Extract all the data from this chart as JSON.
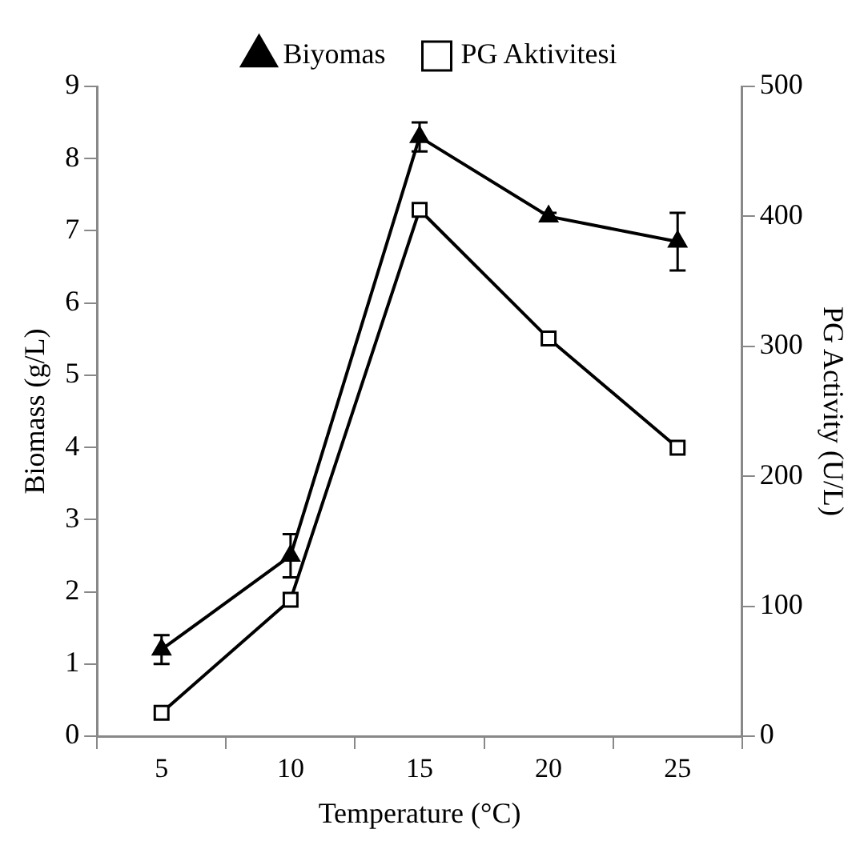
{
  "chart_data": {
    "type": "line",
    "xlabel": "Temperature (°C)",
    "ylabel": "Biomass (g/L)",
    "y2label": "PG Activity (U/L)",
    "categories": [
      "5",
      "10",
      "15",
      "20",
      "25"
    ],
    "series": [
      {
        "name": "Biyomas",
        "color": "#000000",
        "marker": "triangle",
        "values": [
          1.2,
          2.5,
          8.3,
          7.2,
          6.85
        ],
        "errors": [
          0.2,
          0.3,
          0.2,
          0.05,
          0.4
        ]
      },
      {
        "name": "PG Aktivitesi",
        "color": "#000000",
        "marker": "square",
        "axis": "y2",
        "values": [
          18,
          105,
          405,
          306,
          222
        ]
      }
    ],
    "ylim": [
      0,
      9
    ],
    "yticks": [
      0,
      1,
      2,
      3,
      4,
      5,
      6,
      7,
      8,
      9
    ],
    "y2lim": [
      0,
      500
    ],
    "y2ticks": [
      0,
      100,
      200,
      300,
      400,
      500
    ],
    "legend": "top",
    "grid": false
  }
}
